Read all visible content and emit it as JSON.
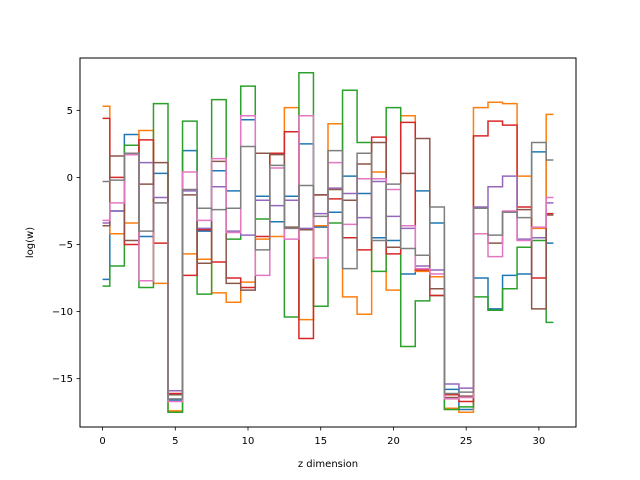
{
  "chart_data": {
    "type": "line",
    "drawstyle": "steps-mid",
    "xlabel": "z dimension",
    "ylabel": "log(w)",
    "xlim": [
      -1.55,
      32.55
    ],
    "ylim": [
      -18.6,
      8.9
    ],
    "xticks": [
      0,
      5,
      10,
      15,
      20,
      25,
      30
    ],
    "yticks": [
      -15,
      -10,
      -5,
      0,
      5
    ],
    "ytick_labels": [
      "−15",
      "−10",
      "−5",
      "0",
      "5"
    ],
    "grid": false,
    "x": [
      0,
      1,
      2,
      3,
      4,
      5,
      6,
      7,
      8,
      9,
      10,
      11,
      12,
      13,
      14,
      15,
      16,
      17,
      18,
      19,
      20,
      21,
      22,
      23,
      24,
      25,
      26,
      27,
      28,
      29,
      30,
      31
    ],
    "series": [
      {
        "color": "#1f77b4",
        "values": [
          -7.6,
          -2.5,
          3.2,
          -4.4,
          0.3,
          -16.6,
          2.0,
          -4.0,
          0.5,
          -1.0,
          4.3,
          -1.4,
          -3.3,
          -1.4,
          2.5,
          -3.7,
          -2.6,
          0.1,
          -1.2,
          -4.5,
          -4.7,
          -7.2,
          -1.0,
          -3.4,
          -15.8,
          -17.3,
          -7.5,
          -9.8,
          -7.3,
          -7.2,
          1.9,
          -4.9
        ]
      },
      {
        "color": "#ff7f0e",
        "values": [
          5.3,
          -4.2,
          -3.4,
          3.5,
          -7.9,
          -17.4,
          -5.7,
          -6.1,
          -8.6,
          -9.3,
          -7.8,
          -4.6,
          -4.4,
          5.2,
          -10.6,
          -3.6,
          4.0,
          -8.9,
          -10.2,
          0.4,
          -8.4,
          4.6,
          -7.0,
          -7.4,
          -17.2,
          -17.5,
          5.2,
          5.6,
          5.5,
          0.1,
          -3.8,
          4.7
        ]
      },
      {
        "color": "#2ca02c",
        "values": [
          -8.1,
          -6.6,
          2.4,
          -8.2,
          5.5,
          -17.5,
          4.2,
          -8.7,
          5.8,
          -4.6,
          6.8,
          -3.1,
          1.8,
          -10.4,
          7.8,
          -9.6,
          -3.4,
          6.5,
          2.6,
          -7.0,
          5.2,
          -12.6,
          -9.2,
          -8.8,
          -17.3,
          -17.1,
          -8.9,
          -9.9,
          -8.3,
          -5.2,
          -4.7,
          -10.8
        ]
      },
      {
        "color": "#d62728",
        "values": [
          4.4,
          0.0,
          -5.0,
          2.8,
          -4.9,
          -16.1,
          -7.3,
          -3.9,
          -6.3,
          -7.5,
          -8.2,
          -4.4,
          1.8,
          3.4,
          -12.0,
          -1.3,
          -1.6,
          -4.5,
          -5.4,
          3.0,
          -5.7,
          4.1,
          -6.9,
          -8.8,
          -16.2,
          -16.7,
          3.1,
          4.2,
          3.9,
          -2.2,
          -7.5,
          -2.7
        ]
      },
      {
        "color": "#9467bd",
        "values": [
          -3.4,
          -2.5,
          1.7,
          1.1,
          -1.5,
          -15.9,
          -1.0,
          -3.8,
          -0.7,
          -4.0,
          -4.3,
          -1.7,
          -2.1,
          -1.7,
          -3.8,
          -2.7,
          -0.8,
          -1.2,
          -3.0,
          -0.3,
          -2.9,
          -3.8,
          -6.6,
          -6.9,
          -15.4,
          -15.7,
          -2.2,
          -0.7,
          0.1,
          -4.6,
          -4.5,
          -1.9
        ]
      },
      {
        "color": "#8c564b",
        "values": [
          -3.6,
          1.6,
          -4.7,
          -0.5,
          1.1,
          -16.2,
          -1.3,
          -6.4,
          1.2,
          -7.9,
          -8.4,
          1.8,
          1.7,
          -3.7,
          -3.9,
          -1.3,
          -0.9,
          -1.7,
          1.0,
          2.6,
          -5.2,
          0.3,
          2.9,
          -8.3,
          -16.4,
          -16.3,
          -4.2,
          -4.9,
          -2.6,
          -2.4,
          -9.8,
          -2.8
        ]
      },
      {
        "color": "#e377c2",
        "values": [
          -3.2,
          -1.9,
          1.7,
          -7.7,
          -1.9,
          -16.7,
          0.4,
          -3.2,
          1.4,
          -4.1,
          4.6,
          -7.3,
          0.7,
          -4.6,
          4.6,
          -6.0,
          1.1,
          -3.5,
          -0.1,
          -0.1,
          -0.9,
          -3.6,
          -6.8,
          -7.2,
          -16.5,
          -16.4,
          -4.2,
          -5.9,
          -2.5,
          -4.7,
          -3.7,
          -1.5
        ]
      },
      {
        "color": "#7f7f7f",
        "values": [
          -0.3,
          -0.2,
          1.8,
          -4.0,
          -1.9,
          -16.5,
          -0.9,
          -2.3,
          -2.4,
          -2.3,
          2.3,
          -5.4,
          0.9,
          -3.8,
          -0.6,
          -2.9,
          2.0,
          -6.8,
          1.8,
          -4.7,
          -0.5,
          -5.3,
          -5.8,
          -2.2,
          -16.1,
          -16.0,
          -2.3,
          -4.3,
          -2.6,
          -3.0,
          2.6,
          1.3
        ]
      }
    ]
  }
}
